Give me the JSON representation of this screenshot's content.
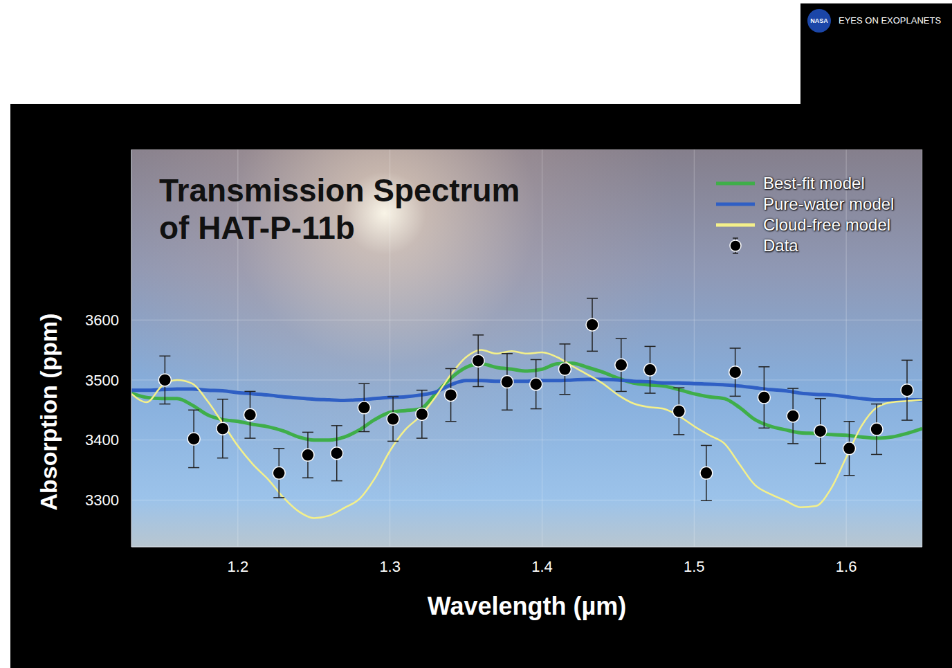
{
  "badge": {
    "logo": "NASA",
    "text": "EYES ON EXOPLANETS"
  },
  "chart_data": {
    "type": "scatter",
    "title": "Transmission Spectrum of HAT-P-11b",
    "x_label": "Wavelength (µm)",
    "y_label": "Absorption (ppm)",
    "xlim": [
      1.13,
      1.65
    ],
    "xticks": [
      1.2,
      1.3,
      1.4,
      1.5,
      1.6
    ],
    "ylim": [
      3222,
      3884
    ],
    "yticks": [
      3300,
      3400,
      3500,
      3600
    ],
    "grid": true,
    "legend": "top-right",
    "series": [
      {
        "name": "Best-fit model",
        "type": "line",
        "color": "#3fae49",
        "line_style": "solid",
        "x": [
          1.13,
          1.14,
          1.15,
          1.16,
          1.17,
          1.18,
          1.19,
          1.2,
          1.21,
          1.22,
          1.23,
          1.24,
          1.25,
          1.26,
          1.27,
          1.28,
          1.29,
          1.3,
          1.31,
          1.32,
          1.33,
          1.34,
          1.35,
          1.36,
          1.37,
          1.38,
          1.39,
          1.4,
          1.41,
          1.42,
          1.43,
          1.44,
          1.45,
          1.46,
          1.47,
          1.48,
          1.49,
          1.5,
          1.51,
          1.52,
          1.53,
          1.54,
          1.55,
          1.56,
          1.57,
          1.58,
          1.59,
          1.6,
          1.61,
          1.62,
          1.63,
          1.64,
          1.65
        ],
        "values": [
          3478,
          3471,
          3469,
          3469,
          3458,
          3442,
          3434,
          3431,
          3426,
          3422,
          3415,
          3405,
          3400,
          3400,
          3405,
          3417,
          3434,
          3446,
          3449,
          3452,
          3477,
          3503,
          3521,
          3527,
          3521,
          3518,
          3515,
          3518,
          3527,
          3528,
          3521,
          3513,
          3503,
          3495,
          3492,
          3490,
          3484,
          3477,
          3472,
          3469,
          3454,
          3434,
          3423,
          3417,
          3412,
          3411,
          3409,
          3408,
          3405,
          3403,
          3405,
          3411,
          3419
        ]
      },
      {
        "name": "Pure-water model",
        "type": "line",
        "color": "#2f5fc4",
        "line_style": "solid",
        "x": [
          1.13,
          1.14,
          1.15,
          1.16,
          1.17,
          1.18,
          1.19,
          1.2,
          1.21,
          1.22,
          1.23,
          1.24,
          1.25,
          1.26,
          1.27,
          1.28,
          1.29,
          1.3,
          1.31,
          1.32,
          1.33,
          1.34,
          1.35,
          1.36,
          1.37,
          1.38,
          1.39,
          1.4,
          1.41,
          1.42,
          1.43,
          1.44,
          1.45,
          1.46,
          1.47,
          1.48,
          1.49,
          1.5,
          1.51,
          1.52,
          1.53,
          1.54,
          1.55,
          1.56,
          1.57,
          1.58,
          1.59,
          1.6,
          1.61,
          1.62,
          1.63,
          1.64,
          1.65
        ],
        "values": [
          3483,
          3483,
          3484,
          3485,
          3485,
          3483,
          3482,
          3479,
          3477,
          3475,
          3472,
          3470,
          3468,
          3467,
          3466,
          3467,
          3469,
          3471,
          3472,
          3475,
          3480,
          3492,
          3499,
          3499,
          3498,
          3498,
          3498,
          3499,
          3499,
          3500,
          3501,
          3501,
          3500,
          3498,
          3497,
          3495,
          3495,
          3494,
          3493,
          3492,
          3490,
          3487,
          3484,
          3482,
          3478,
          3476,
          3475,
          3472,
          3469,
          3467,
          3467,
          3467,
          3467
        ]
      },
      {
        "name": "Cloud-free model",
        "type": "line",
        "color": "#f4f08a",
        "line_style": "solid",
        "x": [
          1.13,
          1.14,
          1.15,
          1.16,
          1.17,
          1.18,
          1.19,
          1.2,
          1.21,
          1.22,
          1.23,
          1.24,
          1.25,
          1.26,
          1.27,
          1.28,
          1.29,
          1.3,
          1.31,
          1.32,
          1.33,
          1.34,
          1.35,
          1.36,
          1.37,
          1.38,
          1.39,
          1.4,
          1.41,
          1.42,
          1.43,
          1.44,
          1.45,
          1.46,
          1.47,
          1.48,
          1.49,
          1.5,
          1.51,
          1.52,
          1.53,
          1.54,
          1.55,
          1.56,
          1.57,
          1.58,
          1.59,
          1.6,
          1.61,
          1.62,
          1.63,
          1.64,
          1.65
        ],
        "values": [
          3477,
          3463,
          3490,
          3500,
          3494,
          3465,
          3428,
          3390,
          3359,
          3334,
          3304,
          3281,
          3270,
          3274,
          3287,
          3302,
          3336,
          3382,
          3417,
          3440,
          3472,
          3509,
          3538,
          3550,
          3544,
          3548,
          3544,
          3546,
          3538,
          3523,
          3509,
          3494,
          3475,
          3461,
          3455,
          3452,
          3440,
          3423,
          3408,
          3394,
          3359,
          3325,
          3310,
          3299,
          3288,
          3290,
          3319,
          3371,
          3423,
          3454,
          3463,
          3465,
          3467
        ]
      },
      {
        "name": "Data",
        "type": "scatter",
        "color": "#000000",
        "marker": "circle",
        "x": [
          1.152,
          1.171,
          1.19,
          1.208,
          1.227,
          1.246,
          1.265,
          1.283,
          1.302,
          1.321,
          1.34,
          1.358,
          1.377,
          1.396,
          1.415,
          1.433,
          1.452,
          1.471,
          1.49,
          1.508,
          1.527,
          1.546,
          1.565,
          1.583,
          1.602,
          1.62,
          1.64
        ],
        "values": [
          3500,
          3402,
          3419,
          3442,
          3345,
          3375,
          3378,
          3454,
          3435,
          3443,
          3475,
          3532,
          3497,
          3493,
          3518,
          3592,
          3525,
          3517,
          3448,
          3345,
          3513,
          3471,
          3440,
          3415,
          3386,
          3418,
          3483
        ],
        "error": [
          40,
          48,
          49,
          39,
          41,
          38,
          46,
          40,
          37,
          40,
          44,
          43,
          47,
          41,
          42,
          44,
          44,
          39,
          39,
          46,
          40,
          51,
          46,
          54,
          45,
          42,
          50
        ]
      }
    ]
  }
}
